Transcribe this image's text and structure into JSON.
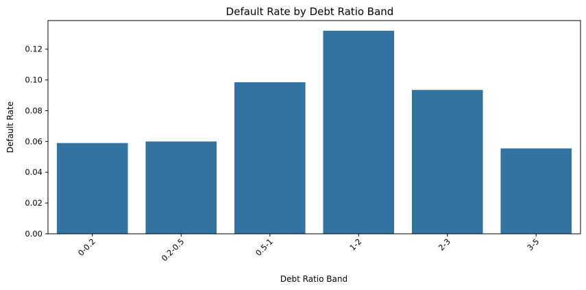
{
  "chart_data": {
    "type": "bar",
    "title": "Default Rate by Debt Ratio Band",
    "xlabel": "Debt Ratio Band",
    "ylabel": "Default Rate",
    "categories": [
      "0-0.2",
      "0.2-0.5",
      "0.5-1",
      "1-2",
      "2-3",
      "3-5"
    ],
    "values": [
      0.059,
      0.06,
      0.0985,
      0.132,
      0.0935,
      0.0555
    ],
    "yticks": [
      "0.00",
      "0.02",
      "0.04",
      "0.06",
      "0.08",
      "0.10",
      "0.12"
    ],
    "ylim": [
      0,
      0.1386
    ],
    "grid": false,
    "bar_color": "#3274a1"
  }
}
